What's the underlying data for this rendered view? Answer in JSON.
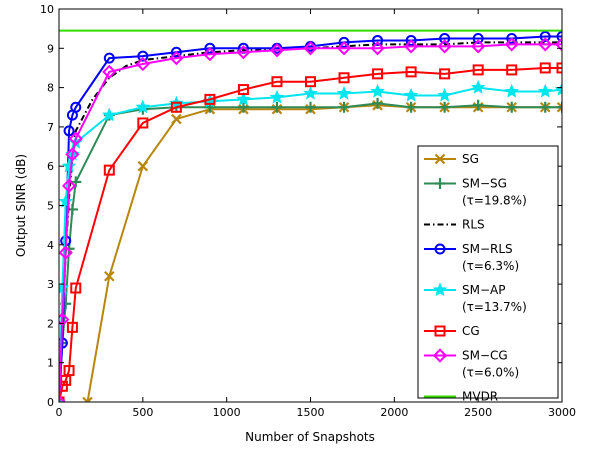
{
  "chart_data": {
    "type": "line",
    "title": "",
    "xlabel": "Number of Snapshots",
    "ylabel": "Output SINR (dB)",
    "xlim": [
      0,
      3000
    ],
    "ylim": [
      0,
      10
    ],
    "xticks": [
      0,
      500,
      1000,
      1500,
      2000,
      2500,
      3000
    ],
    "yticks": [
      0,
      1,
      2,
      3,
      4,
      5,
      6,
      7,
      8,
      9,
      10
    ],
    "grid": false,
    "legend_position": "bottom-right",
    "series": [
      {
        "name": "SG",
        "legend_lines": [
          "SG"
        ],
        "color": "#b8860b",
        "marker": "x",
        "x": [
          170,
          300,
          500,
          700,
          900,
          1100,
          1300,
          1500,
          1700,
          1900,
          2100,
          2300,
          2500,
          2700,
          2900,
          3000
        ],
        "y": [
          0,
          3.2,
          6.0,
          7.2,
          7.45,
          7.45,
          7.45,
          7.45,
          7.5,
          7.55,
          7.5,
          7.5,
          7.5,
          7.5,
          7.5,
          7.5
        ]
      },
      {
        "name": "SM-SG (τ=19.8%)",
        "legend_lines": [
          "SM−SG",
          "(τ=19.8%)"
        ],
        "color": "#2e8b57",
        "marker": "+",
        "x": [
          0,
          20,
          40,
          60,
          80,
          100,
          300,
          500,
          700,
          900,
          1100,
          1300,
          1500,
          1700,
          1900,
          2100,
          2300,
          2500,
          2700,
          2900,
          3000
        ],
        "y": [
          0,
          1.5,
          2.5,
          3.9,
          4.9,
          5.6,
          7.3,
          7.45,
          7.5,
          7.5,
          7.5,
          7.5,
          7.5,
          7.5,
          7.6,
          7.5,
          7.5,
          7.55,
          7.5,
          7.5,
          7.5
        ]
      },
      {
        "name": "RLS",
        "legend_lines": [
          "RLS"
        ],
        "color": "#000000",
        "marker": "none",
        "dash": "6,3,1.5,3",
        "x": [
          0,
          20,
          40,
          60,
          80,
          100,
          200,
          300,
          400,
          500,
          700,
          900,
          1100,
          1300,
          1500,
          1700,
          1900,
          2100,
          2300,
          2500,
          2700,
          2900,
          3000
        ],
        "y": [
          0,
          1.8,
          3.8,
          5.2,
          6.2,
          6.9,
          7.7,
          8.25,
          8.55,
          8.7,
          8.8,
          8.9,
          8.95,
          9.0,
          9.0,
          9.05,
          9.1,
          9.1,
          9.1,
          9.15,
          9.15,
          9.15,
          9.15
        ]
      },
      {
        "name": "SM-RLS (τ=6.3%)",
        "legend_lines": [
          "SM−RLS",
          "(τ=6.3%)"
        ],
        "color": "#0000ff",
        "marker": "o",
        "x": [
          0,
          20,
          40,
          60,
          80,
          100,
          300,
          500,
          700,
          900,
          1100,
          1300,
          1500,
          1700,
          1900,
          2100,
          2300,
          2500,
          2700,
          2900,
          3000
        ],
        "y": [
          0,
          1.5,
          4.1,
          6.9,
          7.3,
          7.5,
          8.75,
          8.8,
          8.9,
          9.0,
          9.0,
          9.0,
          9.05,
          9.15,
          9.2,
          9.2,
          9.25,
          9.25,
          9.25,
          9.3,
          9.3
        ]
      },
      {
        "name": "SM-AP (τ=13.7%)",
        "legend_lines": [
          "SM−AP",
          "(τ=13.7%)"
        ],
        "color": "#00e5ee",
        "marker": "star",
        "x": [
          0,
          20,
          40,
          60,
          80,
          100,
          300,
          500,
          700,
          900,
          1100,
          1300,
          1500,
          1700,
          1900,
          2100,
          2300,
          2500,
          2700,
          2900,
          3000
        ],
        "y": [
          0,
          2.9,
          5.1,
          6.0,
          6.3,
          6.6,
          7.3,
          7.5,
          7.6,
          7.65,
          7.7,
          7.75,
          7.85,
          7.85,
          7.9,
          7.8,
          7.8,
          8.0,
          7.9,
          7.9,
          7.95
        ]
      },
      {
        "name": "CG",
        "legend_lines": [
          "CG"
        ],
        "color": "#ff0000",
        "marker": "s",
        "x": [
          0,
          20,
          40,
          60,
          80,
          100,
          300,
          500,
          700,
          900,
          1100,
          1300,
          1500,
          1700,
          1900,
          2100,
          2300,
          2500,
          2700,
          2900,
          3000
        ],
        "y": [
          0,
          0.4,
          0.55,
          0.8,
          1.9,
          2.9,
          5.9,
          7.1,
          7.5,
          7.7,
          7.95,
          8.15,
          8.15,
          8.25,
          8.35,
          8.4,
          8.35,
          8.45,
          8.45,
          8.5,
          8.5
        ]
      },
      {
        "name": "SM-CG (τ=6.0%)",
        "legend_lines": [
          "SM−CG",
          "(τ=6.0%)"
        ],
        "color": "#ff00ff",
        "marker": "d",
        "x": [
          0,
          20,
          40,
          60,
          80,
          100,
          300,
          500,
          700,
          900,
          1100,
          1300,
          1500,
          1700,
          1900,
          2100,
          2300,
          2500,
          2700,
          2900,
          3000
        ],
        "y": [
          0,
          2.1,
          3.8,
          5.5,
          6.3,
          6.7,
          8.4,
          8.6,
          8.75,
          8.85,
          8.9,
          8.95,
          9.0,
          9.0,
          9.0,
          9.05,
          9.05,
          9.05,
          9.1,
          9.1,
          9.1
        ]
      },
      {
        "name": "MVDR",
        "legend_lines": [
          "MVDR"
        ],
        "color": "#33dd00",
        "marker": "none",
        "x": [
          0,
          3000
        ],
        "y": [
          9.45,
          9.45
        ]
      }
    ]
  }
}
